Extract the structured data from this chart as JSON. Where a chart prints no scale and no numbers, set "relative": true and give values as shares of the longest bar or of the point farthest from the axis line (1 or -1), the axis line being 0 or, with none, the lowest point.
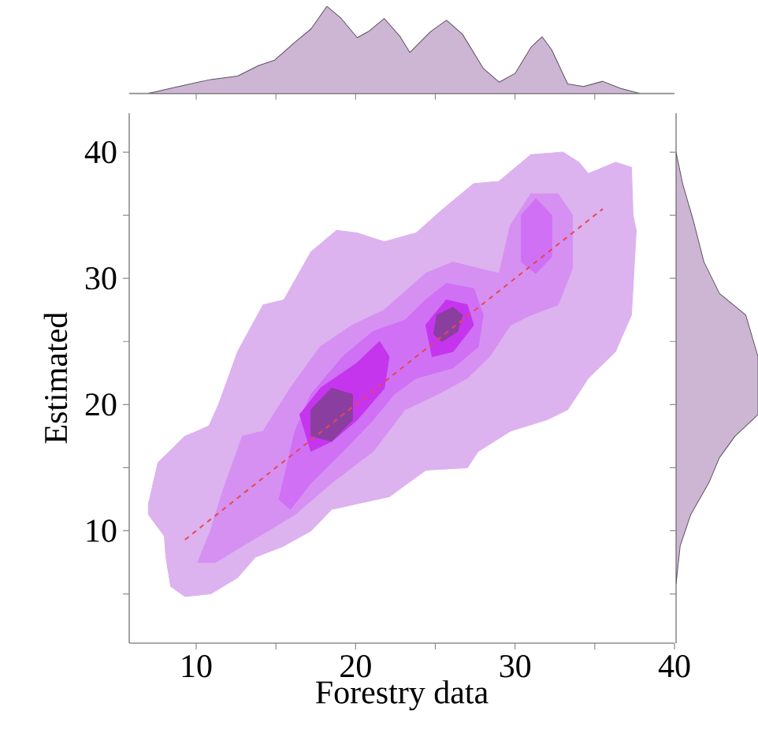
{
  "chart_data": [
    {
      "type": "area",
      "relative": true,
      "xlim": [
        5.8,
        40
      ],
      "tick_labels": false,
      "xticks": [
        10,
        15,
        20,
        25,
        30,
        35
      ],
      "series": [
        {
          "color": "#cdb6d3",
          "x": [
            7,
            8.9,
            10.9,
            12.6,
            13.9,
            14.9,
            16.2,
            17.2,
            18.2,
            19.1,
            20.1,
            20.8,
            21.8,
            22.8,
            23.4,
            24.7,
            25.7,
            26.7,
            28,
            29,
            30,
            31,
            31.7,
            32.3,
            33.3,
            34.3,
            35.5,
            36.6,
            37.8
          ],
          "values": [
            0,
            0.08,
            0.16,
            0.2,
            0.32,
            0.38,
            0.59,
            0.74,
            1,
            0.86,
            0.64,
            0.71,
            0.86,
            0.65,
            0.47,
            0.71,
            0.84,
            0.68,
            0.29,
            0.13,
            0.23,
            0.53,
            0.65,
            0.5,
            0.11,
            0.08,
            0.14,
            0.06,
            0
          ]
        }
      ]
    },
    {
      "type": "area",
      "xlabel": "Forestry data",
      "ylabel": "Estimated",
      "xlim": [
        5.8,
        40
      ],
      "ylim": [
        1.1,
        43.1
      ],
      "xticks": [
        10,
        {
          "value": 15,
          "label": null
        },
        20,
        {
          "value": 25,
          "label": null
        },
        30,
        {
          "value": 35,
          "label": null
        },
        40
      ],
      "yticks": [
        {
          "value": 5,
          "label": null
        },
        10,
        {
          "value": 15,
          "label": null
        },
        20,
        {
          "value": 25,
          "label": null
        },
        30,
        {
          "value": 35,
          "label": null
        },
        40
      ],
      "series": [
        {
          "type": "area",
          "color": "#dcb2ef",
          "x": [
            7,
            7.6,
            9.3,
            10.8,
            11.4,
            12.6,
            14.2,
            15.5,
            17.2,
            18.8,
            20.1,
            21.8,
            23.8,
            25.4,
            27.4,
            29,
            31,
            33,
            34,
            34.6,
            36.3,
            37.3,
            37.4,
            37.6,
            37.3,
            36.3,
            34.6,
            33.3,
            32,
            29.7,
            27.7,
            27,
            24.4,
            22.1,
            18.5,
            17.2,
            15.5,
            13.7,
            12.6,
            10.9,
            9.3,
            8.4,
            8.1,
            8,
            7
          ],
          "values": [
            12.1,
            15.4,
            17.5,
            18.3,
            20,
            24.2,
            27.9,
            28.3,
            32.1,
            33.8,
            33.6,
            32.9,
            33.6,
            35.4,
            37.5,
            37.7,
            39.8,
            40,
            39.2,
            38.3,
            39.2,
            38.8,
            35,
            33.8,
            27.1,
            24.2,
            22.1,
            19.6,
            18.8,
            17.9,
            16.3,
            15,
            14.8,
            12.7,
            11.7,
            10,
            8.8,
            7.9,
            6.3,
            5,
            4.8,
            5.6,
            7.9,
            9.6,
            11.3
          ]
        },
        {
          "type": "area",
          "color": "#d690f2",
          "x": [
            10.1,
            10.9,
            11.6,
            12.9,
            14.2,
            15.9,
            17.8,
            19.8,
            21.8,
            24.4,
            26.1,
            27.7,
            29,
            29.7,
            31,
            32.7,
            33.6,
            33.6,
            32.7,
            31,
            29.7,
            28.4,
            27,
            25.1,
            23.1,
            21.1,
            18.5,
            16.2,
            14.5,
            12.9,
            11.2
          ],
          "values": [
            7.5,
            10,
            12.9,
            17.5,
            17.9,
            21.3,
            24.6,
            26.3,
            27.5,
            30.4,
            31.3,
            30.8,
            30.4,
            34.2,
            36.7,
            36.7,
            35,
            30.8,
            27.9,
            27.1,
            26.3,
            23.8,
            22.1,
            20.8,
            19.6,
            16.3,
            13.8,
            11.3,
            10,
            8.8,
            7.5
          ]
        },
        {
          "type": "area",
          "color": "#d070f5",
          "x": [
            15.2,
            16.2,
            17.2,
            19.2,
            21.1,
            23.1,
            24.4,
            25.7,
            27.4,
            28,
            27.7,
            26.1,
            23.8,
            22.4,
            21.1,
            19.2,
            17.2,
            15.9
          ],
          "values": [
            12.5,
            17.9,
            20.8,
            23.8,
            25.8,
            26.7,
            28.3,
            29.6,
            29.2,
            27.1,
            24.6,
            22.9,
            22.1,
            20.8,
            18.8,
            16.3,
            13.8,
            11.7
          ]
        },
        {
          "type": "area",
          "color": "#d070f5",
          "x": [
            30.4,
            31.3,
            32.3,
            32.3,
            31.3,
            30.4
          ],
          "values": [
            35,
            36.3,
            35,
            31.7,
            30.4,
            31.3
          ]
        },
        {
          "type": "area",
          "color": "#c535ee",
          "x": [
            16.5,
            17.8,
            20.1,
            21.5,
            22.1,
            21.8,
            20.1,
            18.5,
            17.2
          ],
          "values": [
            19.2,
            21.3,
            23.3,
            25,
            23.8,
            21.3,
            18.8,
            17.1,
            16.3
          ]
        },
        {
          "type": "area",
          "color": "#c535ee",
          "x": [
            24.4,
            25.7,
            27,
            27.4,
            26.1,
            24.8
          ],
          "values": [
            26.3,
            28.3,
            27.9,
            26.3,
            24.2,
            23.8
          ]
        },
        {
          "type": "area",
          "color": "#8a3fa0",
          "x": [
            17.2,
            18.5,
            19.8,
            19.8,
            18.5,
            17.2
          ],
          "values": [
            19.6,
            21.3,
            20.8,
            18.8,
            17.1,
            17.5
          ]
        },
        {
          "type": "area",
          "color": "#8a3fa0",
          "x": [
            25.1,
            26.1,
            26.7,
            26.4,
            25.4,
            24.9
          ],
          "values": [
            27.1,
            27.7,
            27.1,
            25.8,
            25,
            25.6
          ]
        },
        {
          "type": "line",
          "color": "#e8474f",
          "line_style": "dashed",
          "x": [
            9.3,
            35.5
          ],
          "values": [
            9.3,
            35.5
          ]
        }
      ]
    },
    {
      "type": "area",
      "relative": true,
      "orientation": "horizontal",
      "ylim": [
        1.1,
        43.1
      ],
      "tick_labels": false,
      "yticks": [
        5,
        10,
        15,
        20,
        25,
        30,
        35,
        40
      ],
      "series": [
        {
          "color": "#cdb6d3",
          "x": [
            5.8,
            8.8,
            11.3,
            13.8,
            15.8,
            17.5,
            19.2,
            23.8,
            27.1,
            28.8,
            31.3,
            34.6,
            37.5,
            40
          ],
          "values": [
            0,
            0.05,
            0.18,
            0.4,
            0.53,
            0.72,
            1,
            1,
            0.85,
            0.53,
            0.34,
            0.21,
            0.08,
            0
          ]
        }
      ]
    }
  ]
}
